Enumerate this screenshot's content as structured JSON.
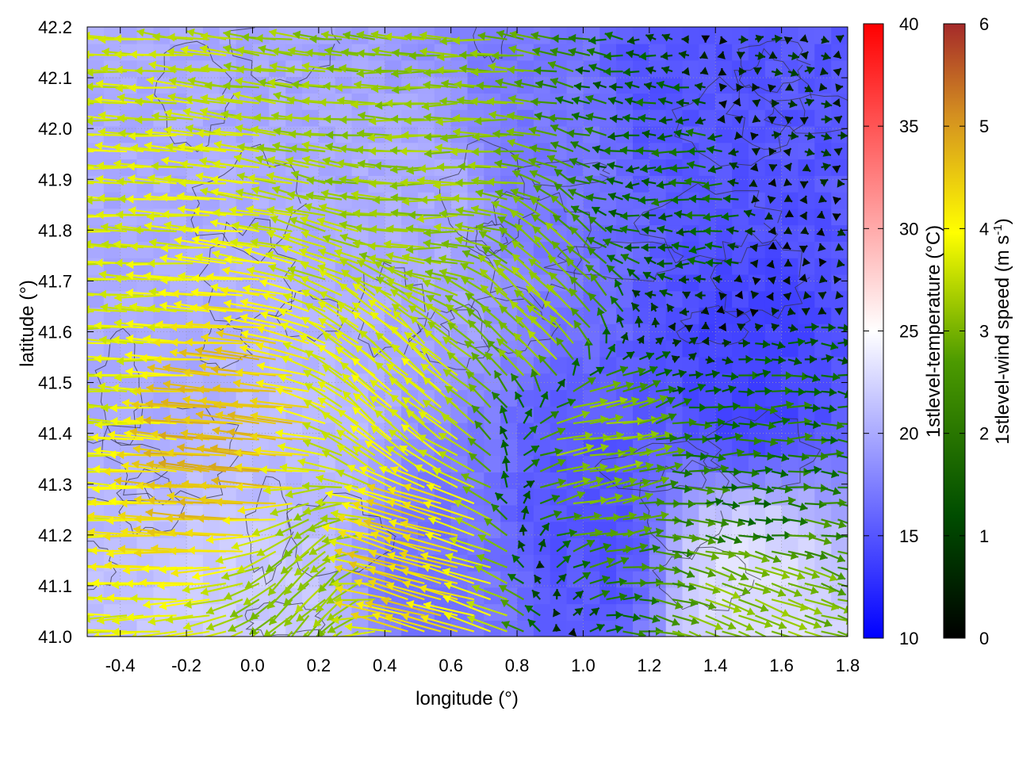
{
  "chart_data": {
    "type": "heatmap",
    "overlays": [
      "vector-field",
      "contour"
    ],
    "xlabel": "longitude (°)",
    "ylabel": "latitude (°)",
    "xlim": [
      -0.5,
      1.8
    ],
    "ylim": [
      41.0,
      42.2
    ],
    "xticks": [
      "-0.4",
      "-0.2",
      "0.0",
      "0.2",
      "0.4",
      "0.6",
      "0.8",
      "1.0",
      "1.2",
      "1.4",
      "1.6",
      "1.8"
    ],
    "yticks": [
      "41.0",
      "41.1",
      "41.2",
      "41.3",
      "41.4",
      "41.5",
      "41.6",
      "41.7",
      "41.8",
      "41.9",
      "42.0",
      "42.1",
      "42.2"
    ],
    "grid": true,
    "temperature_colorbar": {
      "label": "1stlevel-temperature (°C)",
      "range": [
        10,
        40
      ],
      "ticks": [
        "10",
        "15",
        "20",
        "25",
        "30",
        "35",
        "40"
      ],
      "colors": [
        "#0000ff",
        "#ffffff",
        "#ff0000"
      ]
    },
    "wind_colorbar": {
      "label_main": "1stlevel-wind speed (m s",
      "label_sup": "-1",
      "label_end": ")",
      "range": [
        0,
        6
      ],
      "ticks": [
        "0",
        "1",
        "2",
        "3",
        "4",
        "5",
        "6"
      ],
      "colors": [
        "#000000",
        "#006400",
        "#7fbf00",
        "#ffff00",
        "#d4a020",
        "#a52a2a"
      ]
    },
    "temperature_regions": [
      {
        "lon": -0.3,
        "lat": 41.6,
        "t": 20
      },
      {
        "lon": 0.1,
        "lat": 41.4,
        "t": 21
      },
      {
        "lon": 0.5,
        "lat": 41.8,
        "t": 20
      },
      {
        "lon": 0.9,
        "lat": 42.0,
        "t": 17
      },
      {
        "lon": 1.3,
        "lat": 42.1,
        "t": 15
      },
      {
        "lon": 1.5,
        "lat": 41.5,
        "t": 14
      },
      {
        "lon": 1.0,
        "lat": 41.2,
        "t": 15
      },
      {
        "lon": 1.5,
        "lat": 41.1,
        "t": 23
      },
      {
        "lon": 0.0,
        "lat": 41.1,
        "t": 22
      },
      {
        "lon": 0.6,
        "lat": 41.1,
        "t": 17
      }
    ],
    "wind_regions": [
      {
        "lon": -0.4,
        "lat": 41.6,
        "u": -3.2,
        "v": 0.1
      },
      {
        "lon": 0.0,
        "lat": 41.35,
        "u": -4.5,
        "v": 0.4
      },
      {
        "lon": 0.45,
        "lat": 41.45,
        "u": -2.5,
        "v": 2.2
      },
      {
        "lon": 0.9,
        "lat": 41.6,
        "u": -2.0,
        "v": 1.8
      },
      {
        "lon": 0.6,
        "lat": 41.9,
        "u": -2.6,
        "v": 0.0
      },
      {
        "lon": 1.3,
        "lat": 41.9,
        "u": -1.2,
        "v": 0.0
      },
      {
        "lon": 1.6,
        "lat": 42.1,
        "u": 0.5,
        "v": 0.0
      },
      {
        "lon": 1.5,
        "lat": 41.3,
        "u": 1.4,
        "v": 0.0
      },
      {
        "lon": 1.5,
        "lat": 41.05,
        "u": 2.3,
        "v": -0.9
      },
      {
        "lon": 0.2,
        "lat": 41.1,
        "u": -1.8,
        "v": -1.8
      },
      {
        "lon": 0.5,
        "lat": 41.15,
        "u": -4.0,
        "v": 1.2
      },
      {
        "lon": 1.0,
        "lat": 41.4,
        "u": 2.5,
        "v": 0.4
      }
    ]
  }
}
